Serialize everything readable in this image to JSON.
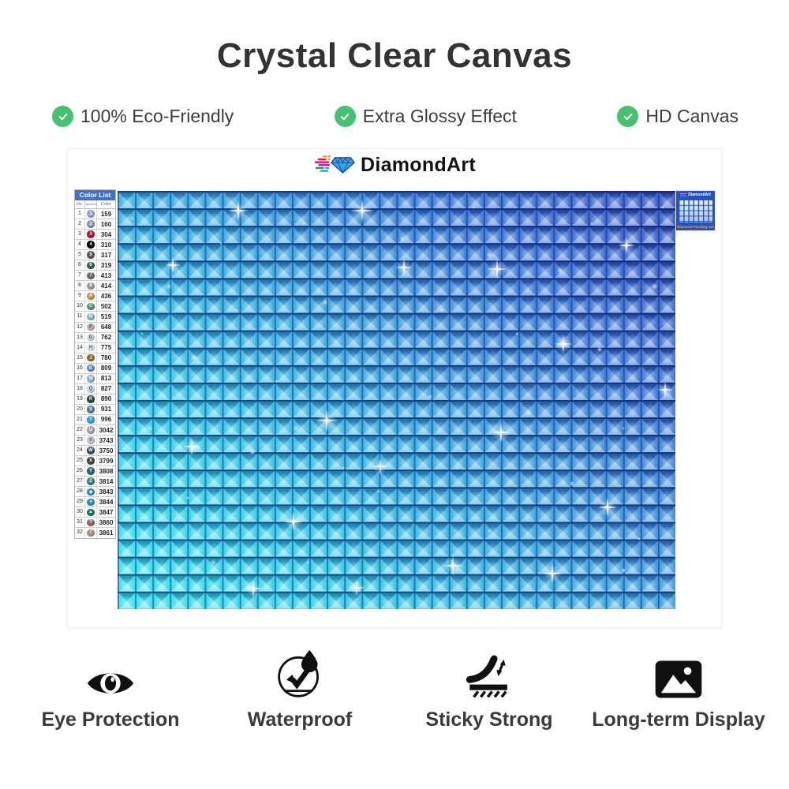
{
  "page": {
    "title": "Crystal Clear Canvas"
  },
  "top_features": [
    {
      "label": "100% Eco-Friendly",
      "icon": "check-icon"
    },
    {
      "label": "Extra Glossy Effect",
      "icon": "check-icon"
    },
    {
      "label": "HD Canvas",
      "icon": "check-icon"
    }
  ],
  "brand": {
    "name": "DiamondArt"
  },
  "color_list": {
    "title": "Color List",
    "col_no": "No.",
    "col_symbol": "Symbol",
    "col_color": "Color",
    "rows": [
      {
        "no": "1",
        "symbol": "1",
        "code": "159",
        "bg": "#8da6d4",
        "fg": "#ffffff"
      },
      {
        "no": "2",
        "symbol": "2",
        "code": "160",
        "bg": "#8593bd",
        "fg": "#ffffff"
      },
      {
        "no": "3",
        "symbol": "3",
        "code": "304",
        "bg": "#b01830",
        "fg": "#ffffff"
      },
      {
        "no": "4",
        "symbol": "4",
        "code": "310",
        "bg": "#000000",
        "fg": "#ffffff"
      },
      {
        "no": "5",
        "symbol": "5",
        "code": "317",
        "bg": "#5a5a5a",
        "fg": "#ffffff"
      },
      {
        "no": "6",
        "symbol": "6",
        "code": "319",
        "bg": "#2a6648",
        "fg": "#ffffff"
      },
      {
        "no": "7",
        "symbol": "7",
        "code": "413",
        "bg": "#6b6b63",
        "fg": "#ffffff"
      },
      {
        "no": "8",
        "symbol": "8",
        "code": "414",
        "bg": "#9a9a9a",
        "fg": "#ffffff"
      },
      {
        "no": "9",
        "symbol": "A",
        "code": "436",
        "bg": "#cc8f45",
        "fg": "#ffffff"
      },
      {
        "no": "10",
        "symbol": "C",
        "code": "502",
        "bg": "#4d9478",
        "fg": "#ffffff"
      },
      {
        "no": "11",
        "symbol": "D",
        "code": "519",
        "bg": "#7fb8d8",
        "fg": "#ffffff"
      },
      {
        "no": "12",
        "symbol": "F",
        "code": "648",
        "bg": "#b8b2a8",
        "fg": "#555555"
      },
      {
        "no": "13",
        "symbol": "G",
        "code": "762",
        "bg": "#d8d8d8",
        "fg": "#555555"
      },
      {
        "no": "14",
        "symbol": "H",
        "code": "775",
        "bg": "#dce9f5",
        "fg": "#555555"
      },
      {
        "no": "15",
        "symbol": "J",
        "code": "780",
        "bg": "#9a6428",
        "fg": "#ffffff"
      },
      {
        "no": "16",
        "symbol": "K",
        "code": "809",
        "bg": "#5c86d8",
        "fg": "#ffffff"
      },
      {
        "no": "17",
        "symbol": "N",
        "code": "813",
        "bg": "#86b4dc",
        "fg": "#ffffff"
      },
      {
        "no": "18",
        "symbol": "Q",
        "code": "827",
        "bg": "#c3dcf0",
        "fg": "#555555"
      },
      {
        "no": "19",
        "symbol": "R",
        "code": "890",
        "bg": "#1e4d32",
        "fg": "#ffffff"
      },
      {
        "no": "20",
        "symbol": "S",
        "code": "931",
        "bg": "#5578a0",
        "fg": "#ffffff"
      },
      {
        "no": "21",
        "symbol": "T",
        "code": "996",
        "bg": "#2da4e0",
        "fg": "#ffffff"
      },
      {
        "no": "22",
        "symbol": "U",
        "code": "3042",
        "bg": "#a89ab0",
        "fg": "#ffffff"
      },
      {
        "no": "23",
        "symbol": "V",
        "code": "3743",
        "bg": "#c9c3d2",
        "fg": "#555555"
      },
      {
        "no": "24",
        "symbol": "W",
        "code": "3750",
        "bg": "#2e4d60",
        "fg": "#ffffff"
      },
      {
        "no": "25",
        "symbol": "X",
        "code": "3799",
        "bg": "#424242",
        "fg": "#ffffff"
      },
      {
        "no": "26",
        "symbol": "Y",
        "code": "3808",
        "bg": "#226a74",
        "fg": "#ffffff"
      },
      {
        "no": "27",
        "symbol": "Z",
        "code": "3814",
        "bg": "#2a8a7c",
        "fg": "#ffffff"
      },
      {
        "no": "28",
        "symbol": "◆",
        "code": "3843",
        "bg": "#1e8ed8",
        "fg": "#ffffff"
      },
      {
        "no": "29",
        "symbol": "●",
        "code": "3844",
        "bg": "#2492c8",
        "fg": "#ffffff"
      },
      {
        "no": "30",
        "symbol": "▲",
        "code": "3847",
        "bg": "#1d7264",
        "fg": "#ffffff"
      },
      {
        "no": "31",
        "symbol": "?",
        "code": "3860",
        "bg": "#8a6c60",
        "fg": "#ffffff"
      },
      {
        "no": "32",
        "symbol": "/",
        "code": "3861",
        "bg": "#a8907e",
        "fg": "#ffffff"
      }
    ]
  },
  "corner_label": {
    "brand": "DiamondArt",
    "caption": "Diamond Painting Set"
  },
  "bottom_features": [
    {
      "label": "Eye Protection",
      "icon": "eye-icon"
    },
    {
      "label": "Waterproof",
      "icon": "waterproof-icon"
    },
    {
      "label": "Sticky Strong",
      "icon": "sticky-strong-icon"
    },
    {
      "label": "Long-term Display",
      "icon": "picture-icon"
    }
  ],
  "colors": {
    "check_green": "#45c16f",
    "title_text": "#333333",
    "table_header_bg": "#3f6fd0",
    "corner_caption": "#f5a623",
    "canvas_cyan": "#2ae4ec",
    "canvas_blue": "#2a50be"
  }
}
